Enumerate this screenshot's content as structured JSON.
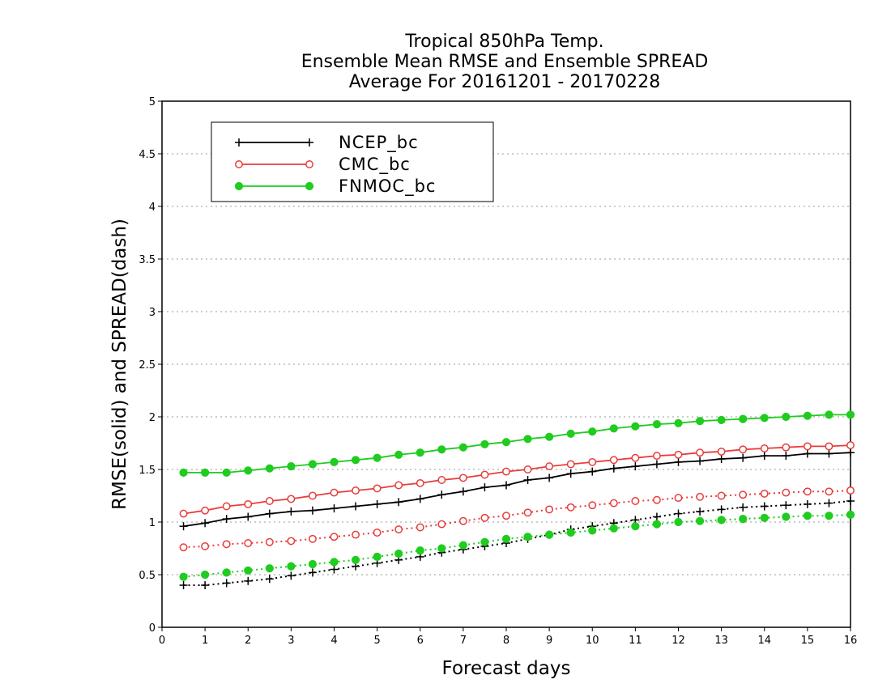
{
  "chart_data": {
    "type": "line",
    "title_lines": [
      "Tropical 850hPa Temp.",
      "Ensemble Mean RMSE and Ensemble SPREAD",
      "Average For 20161201 - 20170228"
    ],
    "xlabel": "Forecast days",
    "ylabel": "RMSE(solid) and SPREAD(dash)",
    "xlim": [
      0,
      16
    ],
    "ylim": [
      0,
      5
    ],
    "xticks": [
      "0",
      "1",
      "2",
      "3",
      "4",
      "5",
      "6",
      "7",
      "8",
      "9",
      "10",
      "11",
      "12",
      "13",
      "14",
      "15",
      "16"
    ],
    "yticks": [
      "0",
      "0.5",
      "1",
      "1.5",
      "2",
      "2.5",
      "3",
      "3.5",
      "4",
      "4.5",
      "5"
    ],
    "grid": "horizontal dotted",
    "legend_position": "top-left",
    "x": [
      0.5,
      1,
      1.5,
      2,
      2.5,
      3,
      3.5,
      4,
      4.5,
      5,
      5.5,
      6,
      6.5,
      7,
      7.5,
      8,
      8.5,
      9,
      9.5,
      10,
      10.5,
      11,
      11.5,
      12,
      12.5,
      13,
      13.5,
      14,
      14.5,
      15,
      15.5,
      16
    ],
    "series": [
      {
        "name": "NCEP_bc",
        "color": "#000000",
        "marker": "plus",
        "rmse": [
          0.96,
          0.99,
          1.03,
          1.05,
          1.08,
          1.1,
          1.11,
          1.13,
          1.15,
          1.17,
          1.19,
          1.22,
          1.26,
          1.29,
          1.33,
          1.35,
          1.4,
          1.42,
          1.46,
          1.48,
          1.51,
          1.53,
          1.55,
          1.57,
          1.58,
          1.6,
          1.61,
          1.63,
          1.63,
          1.65,
          1.65,
          1.66
        ],
        "spread": [
          0.4,
          0.4,
          0.42,
          0.44,
          0.46,
          0.49,
          0.52,
          0.55,
          0.58,
          0.61,
          0.64,
          0.67,
          0.71,
          0.74,
          0.77,
          0.8,
          0.84,
          0.88,
          0.93,
          0.96,
          0.99,
          1.02,
          1.05,
          1.08,
          1.1,
          1.12,
          1.14,
          1.15,
          1.16,
          1.17,
          1.18,
          1.2
        ]
      },
      {
        "name": "CMC_bc",
        "color": "#e83c3c",
        "marker": "open-circle",
        "rmse": [
          1.08,
          1.11,
          1.15,
          1.17,
          1.2,
          1.22,
          1.25,
          1.28,
          1.3,
          1.32,
          1.35,
          1.37,
          1.4,
          1.42,
          1.45,
          1.48,
          1.5,
          1.53,
          1.55,
          1.57,
          1.59,
          1.61,
          1.63,
          1.64,
          1.66,
          1.67,
          1.69,
          1.7,
          1.71,
          1.72,
          1.72,
          1.73
        ],
        "spread": [
          0.76,
          0.77,
          0.79,
          0.8,
          0.81,
          0.82,
          0.84,
          0.86,
          0.88,
          0.9,
          0.93,
          0.95,
          0.98,
          1.01,
          1.04,
          1.06,
          1.09,
          1.12,
          1.14,
          1.16,
          1.18,
          1.2,
          1.21,
          1.23,
          1.24,
          1.25,
          1.26,
          1.27,
          1.28,
          1.29,
          1.29,
          1.3
        ]
      },
      {
        "name": "FNMOC_bc",
        "color": "#1fcc1f",
        "marker": "filled-circle",
        "rmse": [
          1.47,
          1.47,
          1.47,
          1.49,
          1.51,
          1.53,
          1.55,
          1.57,
          1.59,
          1.61,
          1.64,
          1.66,
          1.69,
          1.71,
          1.74,
          1.76,
          1.79,
          1.81,
          1.84,
          1.86,
          1.89,
          1.91,
          1.93,
          1.94,
          1.96,
          1.97,
          1.98,
          1.99,
          2.0,
          2.01,
          2.02,
          2.02
        ],
        "spread": [
          0.48,
          0.5,
          0.52,
          0.54,
          0.56,
          0.58,
          0.6,
          0.62,
          0.64,
          0.67,
          0.7,
          0.73,
          0.75,
          0.78,
          0.81,
          0.84,
          0.86,
          0.88,
          0.9,
          0.92,
          0.94,
          0.96,
          0.98,
          1.0,
          1.01,
          1.02,
          1.03,
          1.04,
          1.05,
          1.06,
          1.06,
          1.07
        ]
      }
    ]
  }
}
